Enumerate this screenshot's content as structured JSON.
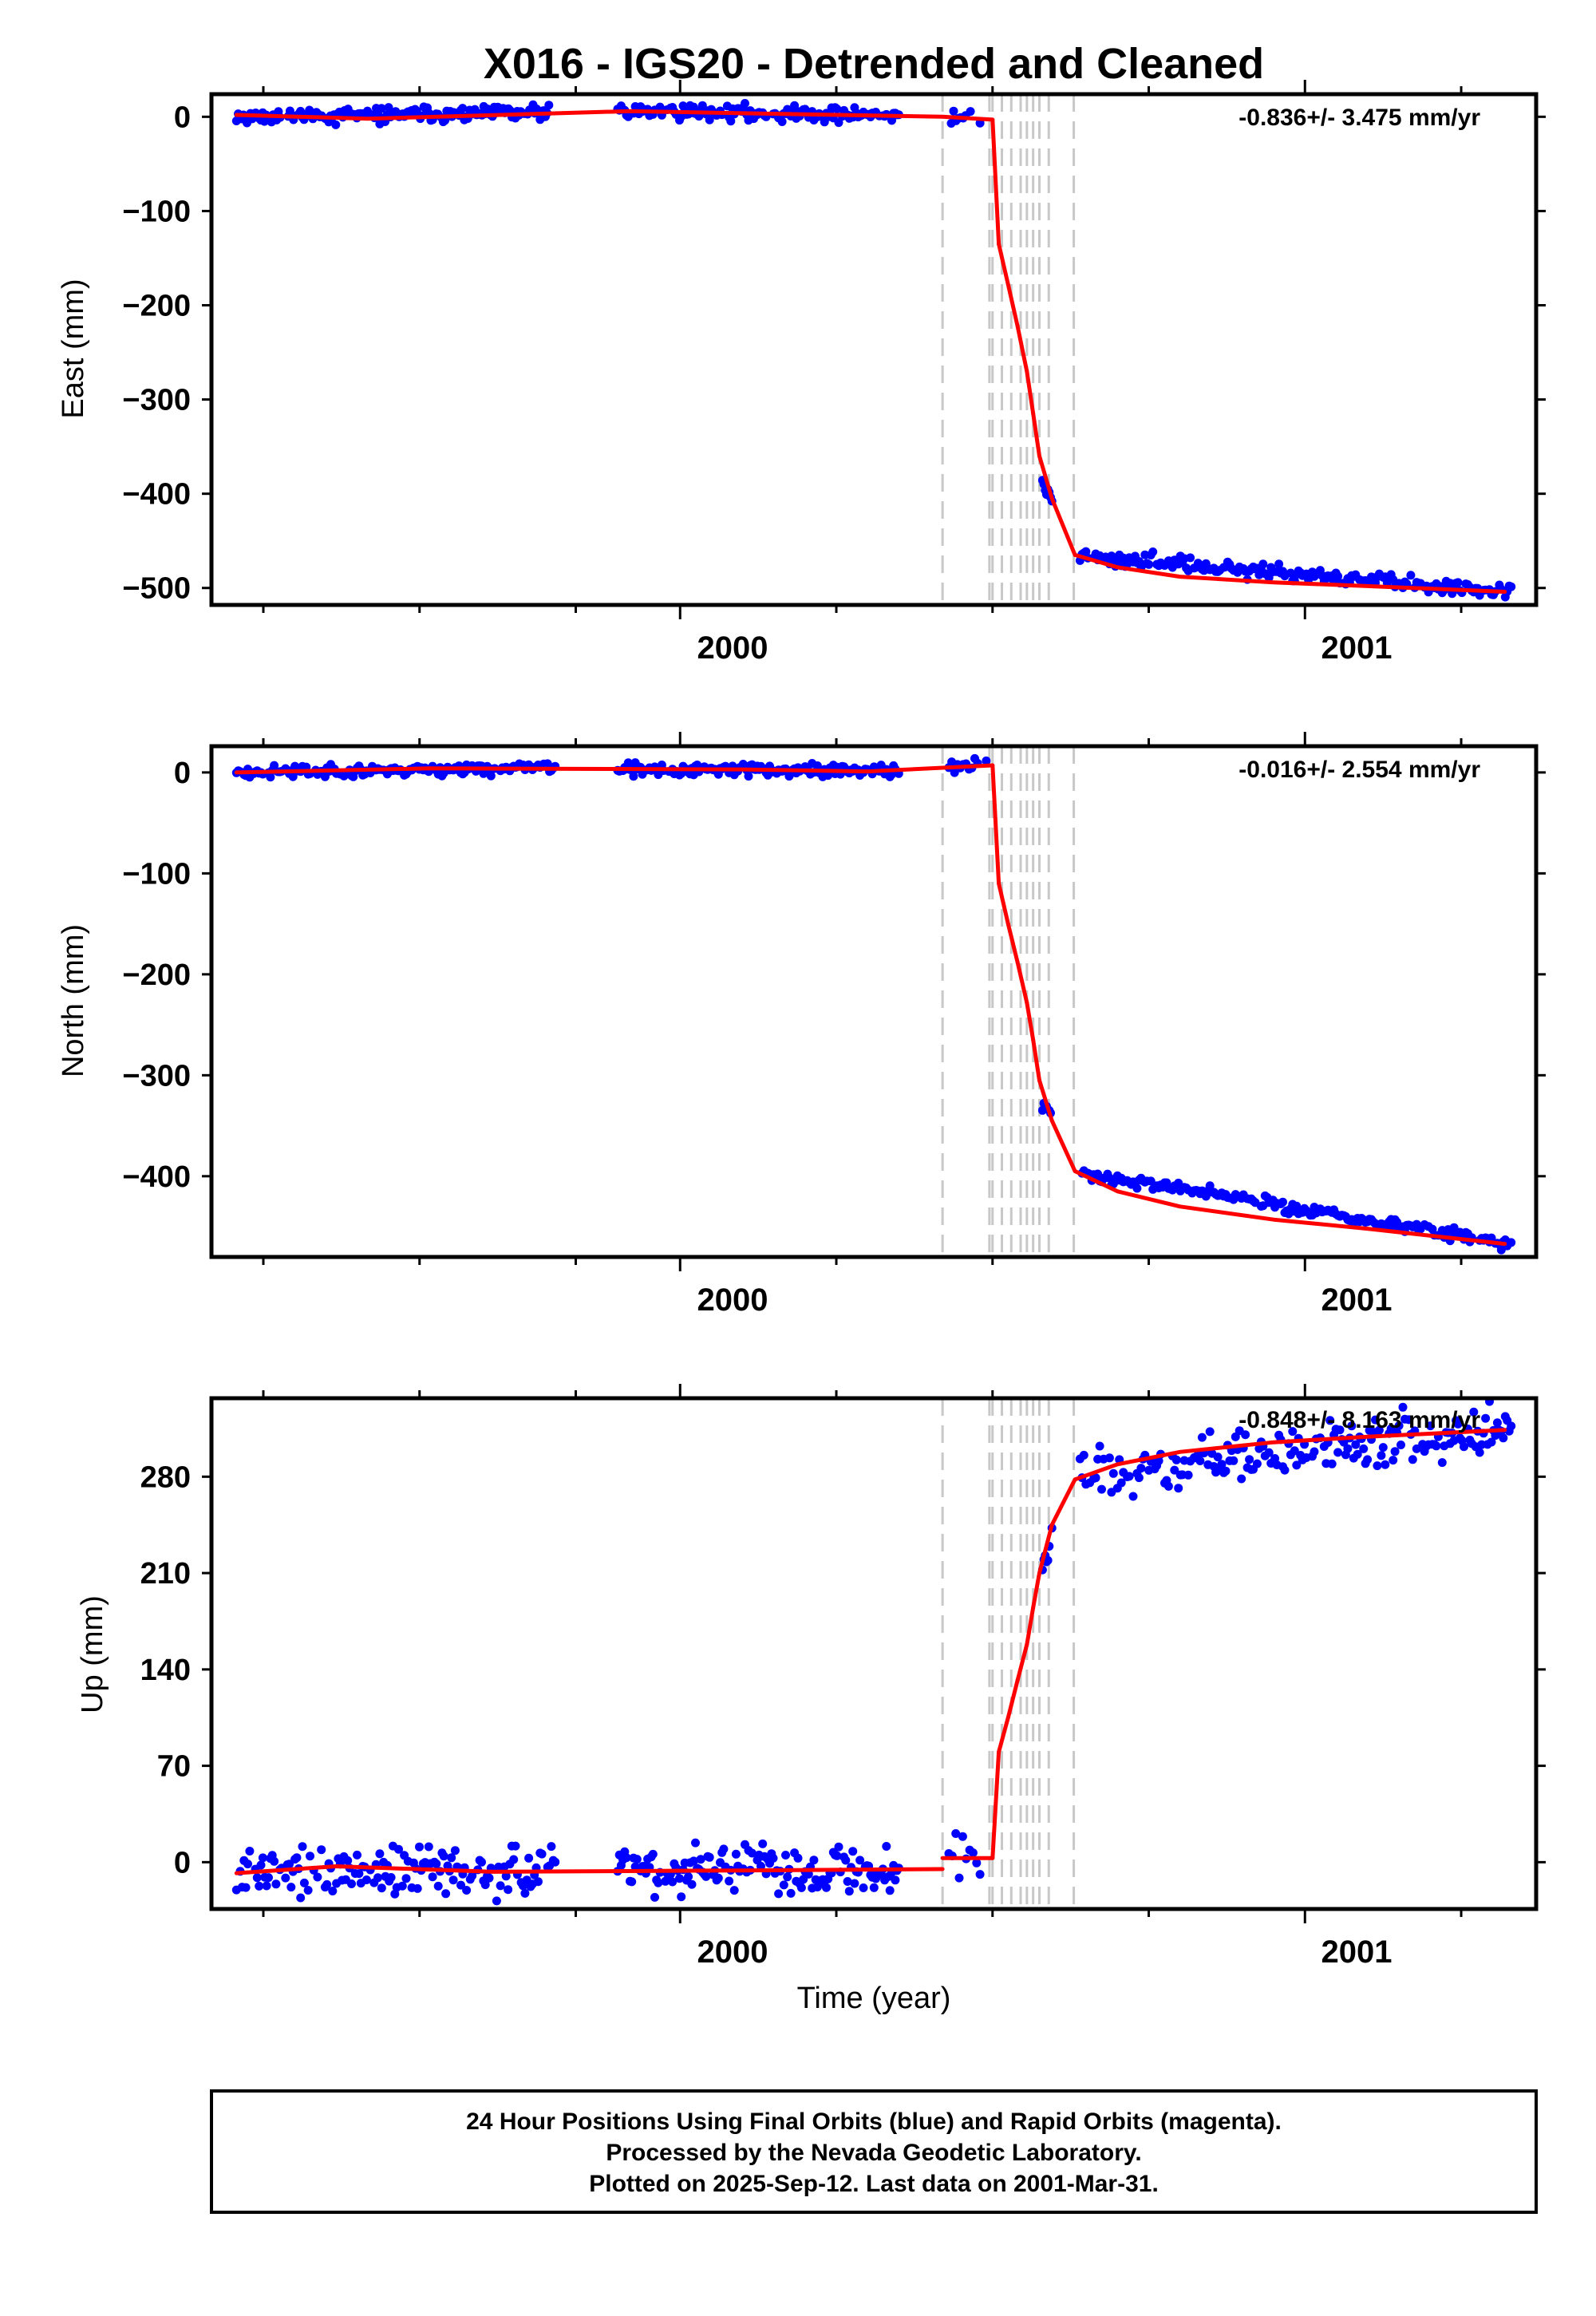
{
  "title": "X016 - IGS20 - Detrended and Cleaned",
  "xlabel": "Time (year)",
  "footer": {
    "lines": [
      "24 Hour Positions Using Final Orbits (blue) and Rapid Orbits (magenta).",
      "Processed by the Nevada Geodetic Laboratory.",
      "Plotted on 2025-Sep-12. Last data on 2001-Mar-31."
    ]
  },
  "colors": {
    "points": "#0000ff",
    "model": "#ff0000",
    "event_lines": "#c8c8c8",
    "frame": "#000000"
  },
  "chart_data": [
    {
      "type": "scatter",
      "panel": "east",
      "ylabel": "East (mm)",
      "rate_text": "-0.836+/- 3.475 mm/yr",
      "xlim": [
        1999.25,
        2001.37
      ],
      "ylim": [
        -518,
        24
      ],
      "yticks": [
        0,
        -100,
        -200,
        -300,
        -400,
        -500
      ],
      "xtick_labels": [
        "2000",
        "2001"
      ],
      "x_major_ticks": [
        2000,
        2001
      ],
      "x_minor_ticks": [
        1999.333,
        1999.583,
        1999.833,
        2000.25,
        2000.5,
        2000.75,
        2001.25
      ],
      "event_lines_x": [
        2000.42,
        2000.495,
        2000.5,
        2000.515,
        2000.53,
        2000.545,
        2000.555,
        2000.565,
        2000.575,
        2000.59,
        2000.63
      ],
      "model": {
        "segments": [
          {
            "x": [
              1999.29,
              1999.5,
              1999.92,
              2000.42,
              2000.5
            ],
            "y": [
              2,
              -2,
              6,
              0,
              -3
            ]
          },
          {
            "x": [
              2000.5,
              2000.51
            ],
            "y": [
              -3,
              -135
            ]
          },
          {
            "x": [
              2000.51,
              2000.525
            ],
            "y": [
              -135,
              -178
            ]
          },
          {
            "x": [
              2000.525,
              2000.54
            ],
            "y": [
              -178,
              -222
            ]
          },
          {
            "x": [
              2000.54,
              2000.555
            ],
            "y": [
              -222,
              -270
            ]
          },
          {
            "x": [
              2000.555,
              2000.565
            ],
            "y": [
              -270,
              -315
            ]
          },
          {
            "x": [
              2000.565,
              2000.575
            ],
            "y": [
              -315,
              -360
            ]
          },
          {
            "x": [
              2000.575,
              2000.595
            ],
            "y": [
              -360,
              -405
            ]
          },
          {
            "x": [
              2000.595,
              2000.632
            ],
            "y": [
              -405,
              -465
            ]
          },
          {
            "x": [
              2000.632,
              2000.7,
              2000.8,
              2000.95,
              2001.1,
              2001.32
            ],
            "y": [
              -465,
              -478,
              -488,
              -494,
              -498,
              -504
            ]
          }
        ]
      },
      "points": {
        "seed": 11,
        "noise": 4,
        "ranges": [
          {
            "x0": 1999.29,
            "x1": 1999.36,
            "n": 26,
            "y0": 2,
            "y1": 1
          },
          {
            "x0": 1999.37,
            "x1": 1999.79,
            "n": 150,
            "y0": 1,
            "y1": 4
          },
          {
            "x0": 1999.9,
            "x1": 2000.35,
            "n": 160,
            "y0": 6,
            "y1": 2
          },
          {
            "x0": 2000.43,
            "x1": 2000.48,
            "n": 14,
            "y0": 1,
            "y1": -1
          },
          {
            "x0": 2000.58,
            "x1": 2000.595,
            "n": 8,
            "y0": -390,
            "y1": -405
          },
          {
            "x0": 2000.64,
            "x1": 2001.33,
            "n": 220,
            "y0": -466,
            "y1": -505
          }
        ]
      }
    },
    {
      "type": "scatter",
      "panel": "north",
      "ylabel": "North (mm)",
      "rate_text": "-0.016+/- 2.554 mm/yr",
      "xlim": [
        1999.25,
        2001.37
      ],
      "ylim": [
        -480,
        26
      ],
      "yticks": [
        0,
        -100,
        -200,
        -300,
        -400
      ],
      "xtick_labels": [
        "2000",
        "2001"
      ],
      "x_major_ticks": [
        2000,
        2001
      ],
      "x_minor_ticks": [
        1999.333,
        1999.583,
        1999.833,
        2000.25,
        2000.5,
        2000.75,
        2001.25
      ],
      "event_lines_x": [
        2000.42,
        2000.495,
        2000.5,
        2000.515,
        2000.53,
        2000.545,
        2000.555,
        2000.565,
        2000.575,
        2000.59,
        2000.63
      ],
      "model": {
        "segments": [
          {
            "x": [
              1999.29,
              1999.6,
              2000.1,
              2000.3,
              2000.5
            ],
            "y": [
              0,
              4,
              3,
              1,
              7
            ]
          },
          {
            "x": [
              2000.5,
              2000.51
            ],
            "y": [
              7,
              -110
            ]
          },
          {
            "x": [
              2000.51,
              2000.525
            ],
            "y": [
              -110,
              -150
            ]
          },
          {
            "x": [
              2000.525,
              2000.54
            ],
            "y": [
              -150,
              -188
            ]
          },
          {
            "x": [
              2000.54,
              2000.555
            ],
            "y": [
              -188,
              -228
            ]
          },
          {
            "x": [
              2000.555,
              2000.565
            ],
            "y": [
              -228,
              -265
            ]
          },
          {
            "x": [
              2000.565,
              2000.575
            ],
            "y": [
              -265,
              -305
            ]
          },
          {
            "x": [
              2000.575,
              2000.595
            ],
            "y": [
              -305,
              -345
            ]
          },
          {
            "x": [
              2000.595,
              2000.632
            ],
            "y": [
              -345,
              -395
            ]
          },
          {
            "x": [
              2000.632,
              2000.7,
              2000.8,
              2000.95,
              2001.1,
              2001.32
            ],
            "y": [
              -395,
              -415,
              -430,
              -443,
              -452,
              -467
            ]
          }
        ]
      },
      "points": {
        "seed": 23,
        "noise": 3,
        "ranges": [
          {
            "x0": 1999.29,
            "x1": 1999.8,
            "n": 170,
            "y0": 0,
            "y1": 5
          },
          {
            "x0": 1999.9,
            "x1": 2000.35,
            "n": 160,
            "y0": 3,
            "y1": 1
          },
          {
            "x0": 2000.43,
            "x1": 2000.49,
            "n": 14,
            "y0": 6,
            "y1": 8
          },
          {
            "x0": 2000.58,
            "x1": 2000.595,
            "n": 8,
            "y0": -330,
            "y1": -340
          },
          {
            "x0": 2000.64,
            "x1": 2001.33,
            "n": 220,
            "y0": -396,
            "y1": -467
          }
        ]
      }
    },
    {
      "type": "scatter",
      "panel": "up",
      "ylabel": "Up (mm)",
      "rate_text": "-0.848+/- 8.163 mm/yr",
      "xlim": [
        1999.25,
        2001.37
      ],
      "ylim": [
        -34,
        337
      ],
      "yticks": [
        0,
        70,
        140,
        210,
        280
      ],
      "xtick_labels": [
        "2000",
        "2001"
      ],
      "x_major_ticks": [
        2000,
        2001
      ],
      "x_minor_ticks": [
        1999.333,
        1999.583,
        1999.833,
        2000.25,
        2000.5,
        2000.75,
        2001.25
      ],
      "event_lines_x": [
        2000.42,
        2000.495,
        2000.5,
        2000.515,
        2000.53,
        2000.545,
        2000.555,
        2000.565,
        2000.575,
        2000.59,
        2000.63
      ],
      "model": {
        "segments": [
          {
            "x": [
              1999.29,
              1999.45,
              1999.7,
              2000.1,
              2000.42
            ],
            "y": [
              -8,
              -3,
              -7,
              -6,
              -5
            ]
          },
          {
            "x": [
              2000.42,
              2000.5
            ],
            "y": [
              3,
              3
            ]
          },
          {
            "x": [
              2000.5,
              2000.51
            ],
            "y": [
              3,
              80
            ]
          },
          {
            "x": [
              2000.51,
              2000.525
            ],
            "y": [
              80,
              105
            ]
          },
          {
            "x": [
              2000.525,
              2000.54
            ],
            "y": [
              105,
              132
            ]
          },
          {
            "x": [
              2000.54,
              2000.555
            ],
            "y": [
              132,
              158
            ]
          },
          {
            "x": [
              2000.555,
              2000.565
            ],
            "y": [
              158,
              185
            ]
          },
          {
            "x": [
              2000.565,
              2000.575
            ],
            "y": [
              185,
              210
            ]
          },
          {
            "x": [
              2000.575,
              2000.595
            ],
            "y": [
              210,
              245
            ]
          },
          {
            "x": [
              2000.595,
              2000.632
            ],
            "y": [
              245,
              278
            ]
          },
          {
            "x": [
              2000.632,
              2000.7,
              2000.8,
              2000.95,
              2001.1,
              2001.32
            ],
            "y": [
              278,
              289,
              298,
              305,
              309,
              314
            ]
          }
        ]
      },
      "points": {
        "seed": 37,
        "noise": 9,
        "ranges": [
          {
            "x0": 1999.29,
            "x1": 1999.8,
            "n": 170,
            "y0": -8,
            "y1": -6
          },
          {
            "x0": 1999.9,
            "x1": 2000.35,
            "n": 160,
            "y0": -6,
            "y1": -5
          },
          {
            "x0": 2000.43,
            "x1": 2000.48,
            "n": 10,
            "y0": 6,
            "y1": 4
          },
          {
            "x0": 2000.58,
            "x1": 2000.595,
            "n": 8,
            "y0": 215,
            "y1": 245
          },
          {
            "x0": 2000.64,
            "x1": 2001.33,
            "n": 220,
            "y0": 282,
            "y1": 316
          }
        ]
      }
    }
  ]
}
